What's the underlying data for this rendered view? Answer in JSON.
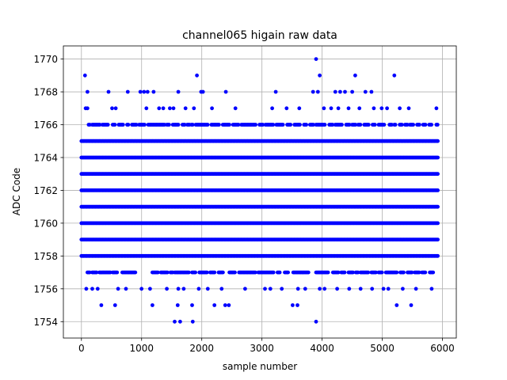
{
  "chart_data": {
    "type": "scatter",
    "title": "channel065 higain raw data",
    "xlabel": "sample number",
    "ylabel": "ADC Code",
    "xlim": [
      -300,
      6230
    ],
    "ylim": [
      1753.0,
      1770.8
    ],
    "xticks": [
      0,
      1000,
      2000,
      3000,
      4000,
      5000,
      6000
    ],
    "yticks": [
      1754,
      1756,
      1758,
      1760,
      1762,
      1764,
      1766,
      1768,
      1770
    ],
    "grid": true,
    "marker_color": "#0000ff",
    "x_range": [
      0,
      5930
    ],
    "dense_levels": [
      1758,
      1759,
      1760,
      1761,
      1762,
      1763,
      1764,
      1765
    ],
    "sparse_levels": {
      "1766": [
        [
          120,
          150
        ],
        [
          180,
          320
        ],
        [
          350,
          450
        ],
        [
          520,
          560
        ],
        [
          620,
          700
        ],
        [
          760,
          790
        ],
        [
          840,
          920
        ],
        [
          960,
          1060
        ],
        [
          1110,
          1380
        ],
        [
          1420,
          1460
        ],
        [
          1520,
          1620
        ],
        [
          1680,
          1720
        ],
        [
          1760,
          1800
        ],
        [
          1830,
          1860
        ],
        [
          1900,
          2100
        ],
        [
          2160,
          2290
        ],
        [
          2350,
          2460
        ],
        [
          2520,
          2620
        ],
        [
          2660,
          2900
        ],
        [
          2960,
          3020
        ],
        [
          3060,
          3200
        ],
        [
          3240,
          3360
        ],
        [
          3420,
          3480
        ],
        [
          3540,
          3640
        ],
        [
          3700,
          3740
        ],
        [
          3800,
          3860
        ],
        [
          3900,
          4060
        ],
        [
          4120,
          4180
        ],
        [
          4220,
          4330
        ],
        [
          4400,
          4460
        ],
        [
          4500,
          4560
        ],
        [
          4600,
          4650
        ],
        [
          4700,
          4780
        ],
        [
          4840,
          4880
        ],
        [
          4940,
          5040
        ],
        [
          5120,
          5160
        ],
        [
          5200,
          5230
        ],
        [
          5290,
          5330
        ],
        [
          5380,
          5420
        ],
        [
          5460,
          5520
        ],
        [
          5580,
          5620
        ],
        [
          5680,
          5720
        ],
        [
          5780,
          5830
        ],
        [
          5900,
          5930
        ]
      ],
      "1757": [
        [
          100,
          150
        ],
        [
          180,
          260
        ],
        [
          300,
          480
        ],
        [
          520,
          600
        ],
        [
          680,
          900
        ],
        [
          1180,
          1280
        ],
        [
          1320,
          1440
        ],
        [
          1480,
          1520
        ],
        [
          1550,
          1800
        ],
        [
          1840,
          1900
        ],
        [
          1960,
          2100
        ],
        [
          2140,
          2220
        ],
        [
          2280,
          2360
        ],
        [
          2460,
          2560
        ],
        [
          2620,
          2900
        ],
        [
          2940,
          3200
        ],
        [
          3260,
          3300
        ],
        [
          3380,
          3440
        ],
        [
          3520,
          3780
        ],
        [
          3900,
          4100
        ],
        [
          4180,
          4280
        ],
        [
          4320,
          4380
        ],
        [
          4440,
          4520
        ],
        [
          4560,
          4600
        ],
        [
          4640,
          4780
        ],
        [
          4820,
          4900
        ],
        [
          4940,
          5000
        ],
        [
          5060,
          5240
        ],
        [
          5300,
          5360
        ],
        [
          5420,
          5500
        ],
        [
          5540,
          5620
        ],
        [
          5660,
          5720
        ],
        [
          5790,
          5860
        ]
      ]
    },
    "sparse_points": [
      {
        "x": 60,
        "y": 1769
      },
      {
        "x": 1920,
        "y": 1769
      },
      {
        "x": 4550,
        "y": 1769
      },
      {
        "x": 5200,
        "y": 1769
      },
      {
        "x": 3960,
        "y": 1769
      },
      {
        "x": 3900,
        "y": 1770
      },
      {
        "x": 100,
        "y": 1768
      },
      {
        "x": 450,
        "y": 1768
      },
      {
        "x": 770,
        "y": 1768
      },
      {
        "x": 980,
        "y": 1768
      },
      {
        "x": 1040,
        "y": 1768
      },
      {
        "x": 1100,
        "y": 1768
      },
      {
        "x": 1200,
        "y": 1768
      },
      {
        "x": 1610,
        "y": 1768
      },
      {
        "x": 1990,
        "y": 1768
      },
      {
        "x": 2020,
        "y": 1768
      },
      {
        "x": 2400,
        "y": 1768
      },
      {
        "x": 3230,
        "y": 1768
      },
      {
        "x": 3850,
        "y": 1768
      },
      {
        "x": 3930,
        "y": 1768
      },
      {
        "x": 4220,
        "y": 1768
      },
      {
        "x": 4300,
        "y": 1768
      },
      {
        "x": 4380,
        "y": 1768
      },
      {
        "x": 4500,
        "y": 1768
      },
      {
        "x": 4720,
        "y": 1768
      },
      {
        "x": 4820,
        "y": 1768
      },
      {
        "x": 70,
        "y": 1767
      },
      {
        "x": 100,
        "y": 1767
      },
      {
        "x": 510,
        "y": 1767
      },
      {
        "x": 570,
        "y": 1767
      },
      {
        "x": 1080,
        "y": 1767
      },
      {
        "x": 1290,
        "y": 1767
      },
      {
        "x": 1360,
        "y": 1767
      },
      {
        "x": 1470,
        "y": 1767
      },
      {
        "x": 1530,
        "y": 1767
      },
      {
        "x": 1730,
        "y": 1767
      },
      {
        "x": 1870,
        "y": 1767
      },
      {
        "x": 2170,
        "y": 1767
      },
      {
        "x": 2560,
        "y": 1767
      },
      {
        "x": 3170,
        "y": 1767
      },
      {
        "x": 3410,
        "y": 1767
      },
      {
        "x": 3620,
        "y": 1767
      },
      {
        "x": 4030,
        "y": 1767
      },
      {
        "x": 4150,
        "y": 1767
      },
      {
        "x": 4270,
        "y": 1767
      },
      {
        "x": 4440,
        "y": 1767
      },
      {
        "x": 4620,
        "y": 1767
      },
      {
        "x": 4860,
        "y": 1767
      },
      {
        "x": 4990,
        "y": 1767
      },
      {
        "x": 5080,
        "y": 1767
      },
      {
        "x": 5290,
        "y": 1767
      },
      {
        "x": 5440,
        "y": 1767
      },
      {
        "x": 5900,
        "y": 1767
      },
      {
        "x": 80,
        "y": 1756
      },
      {
        "x": 180,
        "y": 1756
      },
      {
        "x": 270,
        "y": 1756
      },
      {
        "x": 610,
        "y": 1756
      },
      {
        "x": 740,
        "y": 1756
      },
      {
        "x": 1000,
        "y": 1756
      },
      {
        "x": 1140,
        "y": 1756
      },
      {
        "x": 1420,
        "y": 1756
      },
      {
        "x": 1610,
        "y": 1756
      },
      {
        "x": 1700,
        "y": 1756
      },
      {
        "x": 1950,
        "y": 1756
      },
      {
        "x": 2100,
        "y": 1756
      },
      {
        "x": 2330,
        "y": 1756
      },
      {
        "x": 2720,
        "y": 1756
      },
      {
        "x": 3050,
        "y": 1756
      },
      {
        "x": 3140,
        "y": 1756
      },
      {
        "x": 3330,
        "y": 1756
      },
      {
        "x": 3600,
        "y": 1756
      },
      {
        "x": 3720,
        "y": 1756
      },
      {
        "x": 3960,
        "y": 1756
      },
      {
        "x": 4040,
        "y": 1756
      },
      {
        "x": 4250,
        "y": 1756
      },
      {
        "x": 4450,
        "y": 1756
      },
      {
        "x": 4640,
        "y": 1756
      },
      {
        "x": 4830,
        "y": 1756
      },
      {
        "x": 5020,
        "y": 1756
      },
      {
        "x": 5100,
        "y": 1756
      },
      {
        "x": 5340,
        "y": 1756
      },
      {
        "x": 5560,
        "y": 1756
      },
      {
        "x": 5820,
        "y": 1756
      },
      {
        "x": 330,
        "y": 1755
      },
      {
        "x": 560,
        "y": 1755
      },
      {
        "x": 1180,
        "y": 1755
      },
      {
        "x": 1600,
        "y": 1755
      },
      {
        "x": 1840,
        "y": 1755
      },
      {
        "x": 2210,
        "y": 1755
      },
      {
        "x": 2390,
        "y": 1755
      },
      {
        "x": 2450,
        "y": 1755
      },
      {
        "x": 3510,
        "y": 1755
      },
      {
        "x": 3590,
        "y": 1755
      },
      {
        "x": 5240,
        "y": 1755
      },
      {
        "x": 5480,
        "y": 1755
      },
      {
        "x": 1550,
        "y": 1754
      },
      {
        "x": 1640,
        "y": 1754
      },
      {
        "x": 1850,
        "y": 1754
      },
      {
        "x": 3900,
        "y": 1754
      }
    ]
  }
}
